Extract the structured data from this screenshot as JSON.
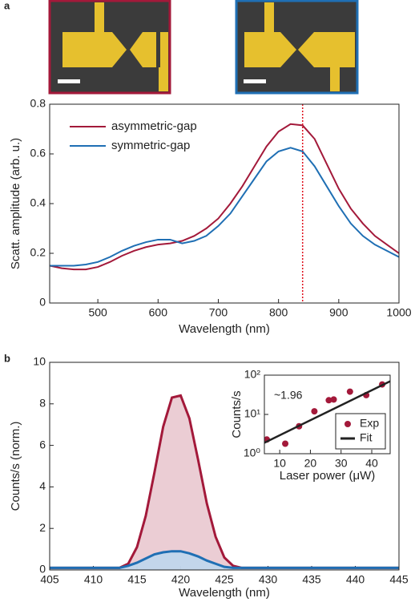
{
  "chart_data": [
    {
      "type": "line",
      "panel": "a",
      "xlabel": "Wavelength (nm)",
      "ylabel": "Scatt. amplitude (arb. u.)",
      "x": [
        420,
        440,
        460,
        480,
        500,
        520,
        540,
        560,
        580,
        600,
        620,
        640,
        660,
        680,
        700,
        720,
        740,
        760,
        780,
        800,
        820,
        840,
        860,
        880,
        900,
        920,
        940,
        960,
        980,
        1000
      ],
      "series": [
        {
          "name": "asymmetric-gap",
          "color": "#a3193a",
          "values": [
            0.15,
            0.14,
            0.135,
            0.135,
            0.145,
            0.165,
            0.19,
            0.21,
            0.225,
            0.235,
            0.24,
            0.25,
            0.27,
            0.3,
            0.34,
            0.4,
            0.47,
            0.55,
            0.63,
            0.69,
            0.72,
            0.715,
            0.66,
            0.56,
            0.46,
            0.38,
            0.32,
            0.27,
            0.235,
            0.2
          ]
        },
        {
          "name": "symmetric-gap",
          "color": "#1f6fb4",
          "values": [
            0.15,
            0.15,
            0.15,
            0.155,
            0.165,
            0.185,
            0.21,
            0.23,
            0.245,
            0.255,
            0.255,
            0.24,
            0.25,
            0.27,
            0.31,
            0.36,
            0.43,
            0.5,
            0.57,
            0.61,
            0.625,
            0.61,
            0.55,
            0.47,
            0.39,
            0.32,
            0.27,
            0.235,
            0.21,
            0.185
          ]
        }
      ],
      "marker_x": 840,
      "marker_color": "#e0101e",
      "xlim": [
        420,
        1000
      ],
      "xticks": [
        500,
        600,
        700,
        800,
        900,
        1000
      ],
      "ylim": [
        0,
        0.8
      ],
      "yticks": [
        0,
        0.2,
        0.4,
        0.6,
        0.8
      ],
      "legend": "upper left"
    },
    {
      "type": "area",
      "panel": "b",
      "xlabel": "Wavelength (nm)",
      "ylabel": "Counts/s (norm.)",
      "x": [
        405,
        406,
        407,
        408,
        409,
        410,
        411,
        412,
        413,
        414,
        415,
        416,
        417,
        418,
        419,
        420,
        421,
        422,
        423,
        424,
        425,
        426,
        427,
        428,
        429,
        430,
        431,
        432,
        433,
        434,
        435,
        436,
        437,
        438,
        439,
        440,
        441,
        442,
        443,
        444,
        445
      ],
      "series": [
        {
          "name": "asymmetric-gap",
          "color": "#a3193a",
          "fill": "#e8c4cc",
          "values": [
            0.1,
            0.1,
            0.1,
            0.1,
            0.1,
            0.1,
            0.1,
            0.1,
            0.1,
            0.3,
            1.1,
            2.6,
            4.7,
            6.9,
            8.3,
            8.4,
            7.3,
            5.3,
            3.2,
            1.6,
            0.6,
            0.2,
            0.1,
            0.1,
            0.1,
            0.1,
            0.1,
            0.1,
            0.1,
            0.1,
            0.1,
            0.1,
            0.1,
            0.1,
            0.1,
            0.1,
            0.1,
            0.1,
            0.1,
            0.1,
            0.1
          ]
        },
        {
          "name": "symmetric-gap",
          "color": "#1f6fb4",
          "fill": "#bcd7ee",
          "values": [
            0.1,
            0.1,
            0.1,
            0.1,
            0.1,
            0.1,
            0.1,
            0.1,
            0.1,
            0.2,
            0.35,
            0.55,
            0.75,
            0.85,
            0.9,
            0.9,
            0.8,
            0.65,
            0.45,
            0.3,
            0.15,
            0.1,
            0.1,
            0.1,
            0.1,
            0.1,
            0.1,
            0.1,
            0.1,
            0.1,
            0.1,
            0.1,
            0.1,
            0.1,
            0.1,
            0.1,
            0.1,
            0.1,
            0.1,
            0.1,
            0.1
          ]
        }
      ],
      "xlim": [
        405,
        445
      ],
      "xticks": [
        405,
        410,
        415,
        420,
        425,
        430,
        435,
        440,
        445
      ],
      "ylim": [
        0,
        10
      ],
      "yticks": [
        0,
        2,
        4,
        6,
        8,
        10
      ]
    },
    {
      "type": "scatter",
      "xlabel": "Laser power (μW)",
      "ylabel": "Counts/s",
      "annotation": "~1.96",
      "series": [
        {
          "name": "Exp",
          "color": "#a3193a",
          "kind": "points",
          "x": [
            5.8,
            11.8,
            16.3,
            21.3,
            26,
            27.6,
            32.9,
            38.2,
            43.4
          ],
          "values": [
            2.3,
            1.8,
            5,
            12,
            23,
            24,
            38,
            31,
            58
          ]
        },
        {
          "name": "Fit",
          "color": "#222222",
          "kind": "line",
          "x": [
            5,
            46
          ],
          "values": [
            1.9,
            70
          ]
        }
      ],
      "xlim": [
        5,
        46
      ],
      "xticks": [
        10,
        20,
        30,
        40
      ],
      "ylim": [
        1,
        100
      ],
      "ylog": true,
      "yticks": [
        {
          "value": 1,
          "label": "10⁰"
        },
        {
          "value": 10,
          "label": "10¹"
        },
        {
          "value": 100,
          "label": "10²"
        }
      ],
      "legend": "lower right"
    }
  ]
}
